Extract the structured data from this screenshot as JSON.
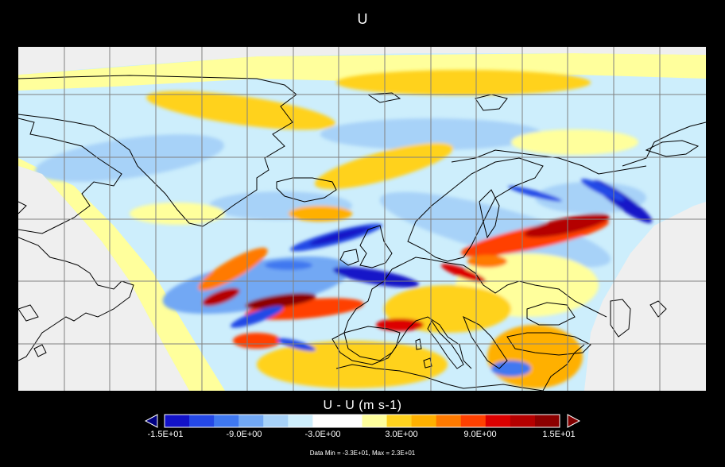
{
  "title": "U",
  "colorbar": {
    "label": "U - U  (m s-1)",
    "colors": [
      "#1212c8",
      "#2448e6",
      "#3f78f0",
      "#72a8f4",
      "#a7d2f8",
      "#cdeefc",
      "#ffffff",
      "#ffffff",
      "#ffff9c",
      "#ffd21e",
      "#ffb000",
      "#ff7a00",
      "#ff4000",
      "#dc0000",
      "#b40000",
      "#8c0000"
    ],
    "under_color": "#000080",
    "over_color": "#800000",
    "ticks": [
      "-1.5E+01",
      "-9.0E+00",
      "-3.0E+00",
      "3.0E+00",
      "9.0E+00",
      "1.5E+01"
    ]
  },
  "footer": "Data Min = -3.3E+01, Max = 2.3E+01",
  "colors": {
    "background": "#000000",
    "land_outside_domain": "#efefef",
    "grid": "#808080",
    "coastline": "#000000"
  }
}
